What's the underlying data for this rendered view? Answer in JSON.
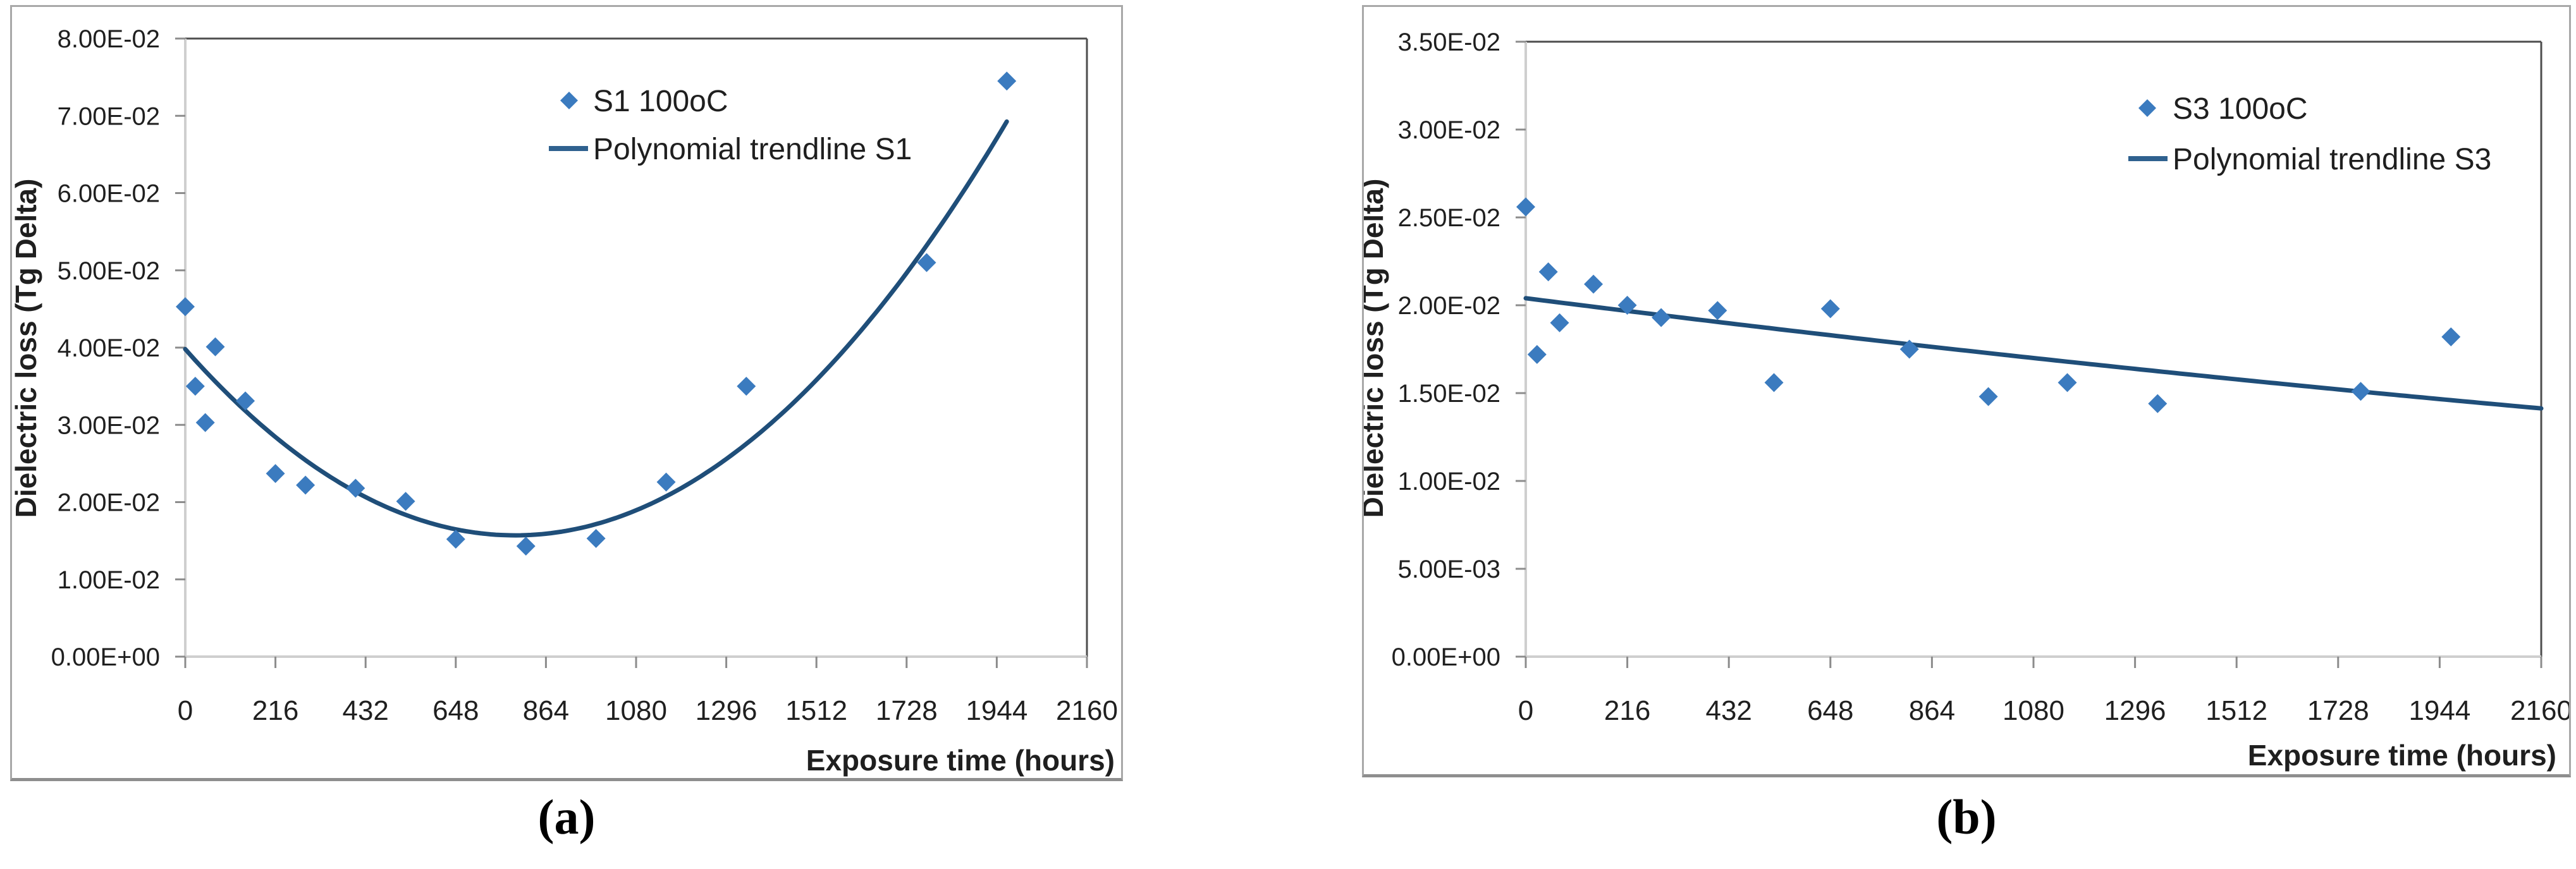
{
  "figure": {
    "captions": {
      "a": "(a)",
      "b": "(b)"
    },
    "colors": {
      "marker": "#3B7BBF",
      "trend": "#1F4E79",
      "legend_line": "#2F618F",
      "axis_line": "#CFCFCF",
      "plot_border": "#4D4D4D",
      "tick": "#8C8C8C",
      "text": "#1F1F1F"
    }
  },
  "chart_data": [
    {
      "id": "a",
      "type": "scatter",
      "caption": "(a)",
      "xlabel": "Exposure time (hours)",
      "ylabel": "Dielectric loss (Tg Delta)",
      "xlim": [
        0,
        2160
      ],
      "ylim": [
        0,
        0.08
      ],
      "xtick_step": 216,
      "ytick_step": 0.01,
      "x_tick_labels": [
        "0",
        "216",
        "432",
        "648",
        "864",
        "1080",
        "1296",
        "1512",
        "1728",
        "1944",
        "2160"
      ],
      "y_tick_labels": [
        "0.00E+00",
        "1.00E-02",
        "2.00E-02",
        "3.00E-02",
        "4.00E-02",
        "5.00E-02",
        "6.00E-02",
        "7.00E-02",
        "8.00E-02"
      ],
      "grid": false,
      "legend_position": "top-center-inside",
      "legend": [
        {
          "label": "S1 100oC",
          "marker": "diamond"
        },
        {
          "label": "Polynomial trendline S1",
          "marker": "line"
        }
      ],
      "series": [
        {
          "name": "S1 100oC",
          "points": [
            [
              0,
              0.0453
            ],
            [
              24,
              0.035
            ],
            [
              48,
              0.0303
            ],
            [
              72,
              0.0401
            ],
            [
              144,
              0.0331
            ],
            [
              216,
              0.0237
            ],
            [
              288,
              0.0222
            ],
            [
              408,
              0.0218
            ],
            [
              528,
              0.0201
            ],
            [
              648,
              0.0152
            ],
            [
              816,
              0.0143
            ],
            [
              984,
              0.0153
            ],
            [
              1152,
              0.0226
            ],
            [
              1344,
              0.035
            ],
            [
              1776,
              0.051
            ],
            [
              1968,
              0.0745
            ]
          ]
        }
      ],
      "trend": {
        "name": "Polynomial trendline S1",
        "coeffs": [
          0.0398,
          -6.1e-05,
          3.86e-08
        ],
        "x_range": [
          0,
          1968
        ]
      }
    },
    {
      "id": "b",
      "type": "scatter",
      "caption": "(b)",
      "xlabel": "Exposure time (hours)",
      "ylabel": "Dielectric loss (Tg Delta)",
      "xlim": [
        0,
        2160
      ],
      "ylim": [
        0,
        0.035
      ],
      "xtick_step": 216,
      "ytick_step": 0.005,
      "x_tick_labels": [
        "0",
        "216",
        "432",
        "648",
        "864",
        "1080",
        "1296",
        "1512",
        "1728",
        "1944",
        "2160"
      ],
      "y_tick_labels": [
        "0.00E+00",
        "5.00E-03",
        "1.00E-02",
        "1.50E-02",
        "2.00E-02",
        "2.50E-02",
        "3.00E-02",
        "3.50E-02"
      ],
      "grid": false,
      "legend_position": "top-right-inside",
      "legend": [
        {
          "label": "S3 100oC",
          "marker": "diamond"
        },
        {
          "label": "Polynomial trendline S3",
          "marker": "line"
        }
      ],
      "series": [
        {
          "name": "S3 100oC",
          "points": [
            [
              0,
              0.0256
            ],
            [
              24,
              0.0172
            ],
            [
              48,
              0.0219
            ],
            [
              72,
              0.019
            ],
            [
              144,
              0.0212
            ],
            [
              216,
              0.02
            ],
            [
              288,
              0.0193
            ],
            [
              408,
              0.0197
            ],
            [
              528,
              0.0156
            ],
            [
              648,
              0.0198
            ],
            [
              816,
              0.0175
            ],
            [
              984,
              0.0148
            ],
            [
              1152,
              0.0156
            ],
            [
              1344,
              0.0144
            ],
            [
              1776,
              0.0151
            ],
            [
              1968,
              0.0182
            ]
          ]
        }
      ],
      "trend": {
        "name": "Polynomial trendline S3",
        "coeffs": [
          0.0204,
          -3.4e-06,
          2.3e-10
        ],
        "x_range": [
          0,
          2160
        ]
      }
    }
  ]
}
